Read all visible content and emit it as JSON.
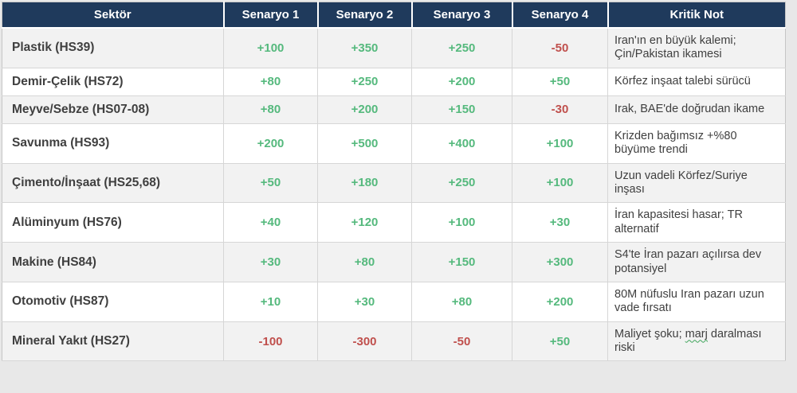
{
  "page": {
    "background_color": "#E8E8E8"
  },
  "colors": {
    "header_bg": "#1F3A5C",
    "header_text": "#FFFFFF",
    "row_bg": "#FFFFFF",
    "row_alt_bg": "#F2F2F2",
    "border": "#D6D6D6",
    "positive_value": "#55B97D",
    "negative_value": "#C0504D",
    "body_text": "#3F3F3F",
    "squiggle_underline": "#3FA45B"
  },
  "chart_data": {
    "type": "table",
    "columns": [
      "Sektör",
      "Senaryo 1",
      "Senaryo 2",
      "Senaryo 3",
      "Senaryo 4",
      "Kritik Not"
    ],
    "rows": [
      {
        "sector": "Plastik (HS39)",
        "values": [
          "+100",
          "+350",
          "+250",
          "-50"
        ],
        "note": "Iran'ın en büyük kalemi; Çin/Pakistan ikamesi"
      },
      {
        "sector": "Demir-Çelik (HS72)",
        "values": [
          "+80",
          "+250",
          "+200",
          "+50"
        ],
        "note": "Körfez inşaat talebi sürücü"
      },
      {
        "sector": "Meyve/Sebze (HS07-08)",
        "values": [
          "+80",
          "+200",
          "+150",
          "-30"
        ],
        "note": "Irak, BAE'de doğrudan ikame"
      },
      {
        "sector": "Savunma (HS93)",
        "values": [
          "+200",
          "+500",
          "+400",
          "+100"
        ],
        "note": "Krizden bağımsız +%80 büyüme trendi"
      },
      {
        "sector": "Çimento/İnşaat (HS25,68)",
        "values": [
          "+50",
          "+180",
          "+250",
          "+100"
        ],
        "note": "Uzun vadeli Körfez/Suriye inşası"
      },
      {
        "sector": "Alüminyum (HS76)",
        "values": [
          "+40",
          "+120",
          "+100",
          "+30"
        ],
        "note": "İran kapasitesi hasar; TR alternatif"
      },
      {
        "sector": "Makine (HS84)",
        "values": [
          "+30",
          "+80",
          "+150",
          "+300"
        ],
        "note": "S4'te İran pazarı açılırsa dev potansiyel"
      },
      {
        "sector": "Otomotiv (HS87)",
        "values": [
          "+10",
          "+30",
          "+80",
          "+200"
        ],
        "note": "80M nüfuslu Iran pazarı uzun vade fırsatı"
      },
      {
        "sector": "Mineral Yakıt (HS27)",
        "values": [
          "-100",
          "-300",
          "-50",
          "+50"
        ],
        "note": "Maliyet şoku; marj daralması riski",
        "squiggle_word": "marj"
      }
    ]
  }
}
